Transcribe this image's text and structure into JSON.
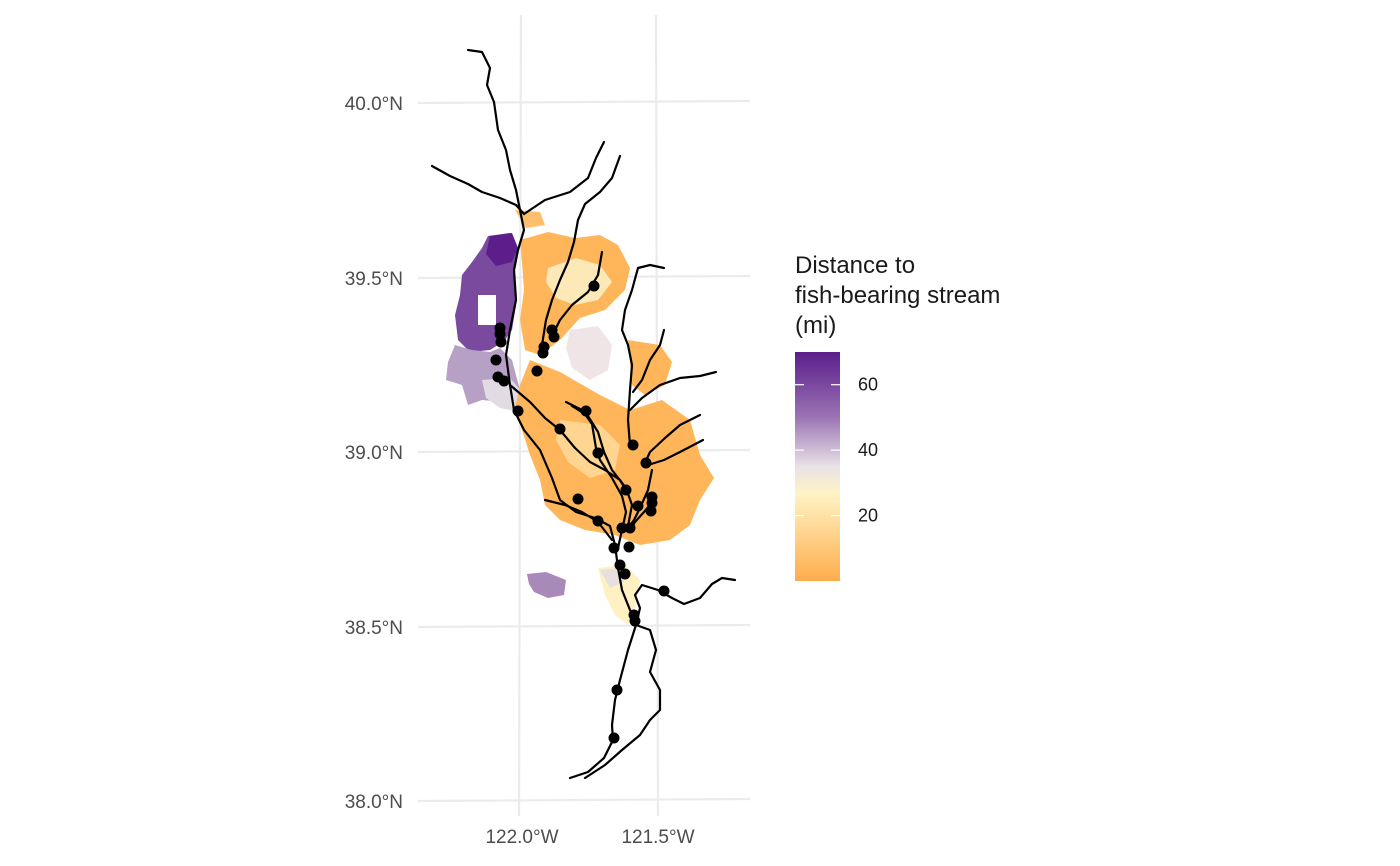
{
  "map": {
    "lat_ticks": [
      "40.0°N",
      "39.5°N",
      "39.0°N",
      "38.5°N",
      "38.0°N"
    ],
    "lon_ticks": [
      "122.0°W",
      "121.5°W"
    ],
    "lat_values": [
      40.0,
      39.5,
      39.0,
      38.5,
      38.0
    ],
    "lon_values": [
      -122.0,
      -121.5
    ],
    "grid": true,
    "gridline_color": "#ebebeb",
    "stream_color": "#000000",
    "point_color": "#000000"
  },
  "legend": {
    "title_lines": [
      "Distance to",
      "fish-bearing stream",
      "(mi)"
    ],
    "tick_labels": [
      "60",
      "40",
      "20"
    ],
    "tick_values": [
      60,
      40,
      20
    ],
    "range": [
      0,
      70
    ],
    "colors": {
      "high": "#5b1e8a",
      "upper_mid": "#9a72b4",
      "mid": "#e8e2e6",
      "lower_mid": "#fff3c4",
      "low": "#ffad4c"
    },
    "placement": "right"
  }
}
